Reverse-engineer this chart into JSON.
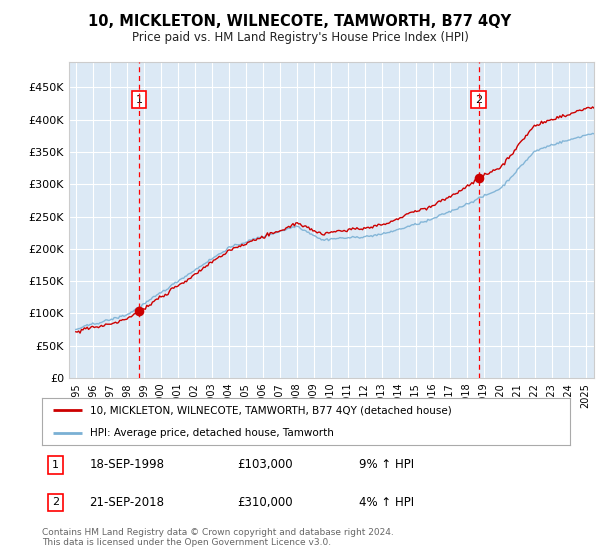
{
  "title": "10, MICKLETON, WILNECOTE, TAMWORTH, B77 4QY",
  "subtitle": "Price paid vs. HM Land Registry's House Price Index (HPI)",
  "plot_bg_color": "#dce9f5",
  "red_line_color": "#cc0000",
  "blue_line_color": "#7ab0d4",
  "sale1_date_num": 1998.72,
  "sale1_price": 103000,
  "sale2_date_num": 2018.72,
  "sale2_price": 310000,
  "yticks": [
    0,
    50000,
    100000,
    150000,
    200000,
    250000,
    300000,
    350000,
    400000,
    450000
  ],
  "ylim": [
    0,
    490000
  ],
  "xlim_start": 1994.6,
  "xlim_end": 2025.5,
  "xticks": [
    1995,
    1996,
    1997,
    1998,
    1999,
    2000,
    2001,
    2002,
    2003,
    2004,
    2005,
    2006,
    2007,
    2008,
    2009,
    2010,
    2011,
    2012,
    2013,
    2014,
    2015,
    2016,
    2017,
    2018,
    2019,
    2020,
    2021,
    2022,
    2023,
    2024,
    2025
  ],
  "legend_label_red": "10, MICKLETON, WILNECOTE, TAMWORTH, B77 4QY (detached house)",
  "legend_label_blue": "HPI: Average price, detached house, Tamworth",
  "annotation1_date": "18-SEP-1998",
  "annotation1_price": "£103,000",
  "annotation1_hpi": "9% ↑ HPI",
  "annotation2_date": "21-SEP-2018",
  "annotation2_price": "£310,000",
  "annotation2_hpi": "4% ↑ HPI",
  "footer": "Contains HM Land Registry data © Crown copyright and database right 2024.\nThis data is licensed under the Open Government Licence v3.0."
}
